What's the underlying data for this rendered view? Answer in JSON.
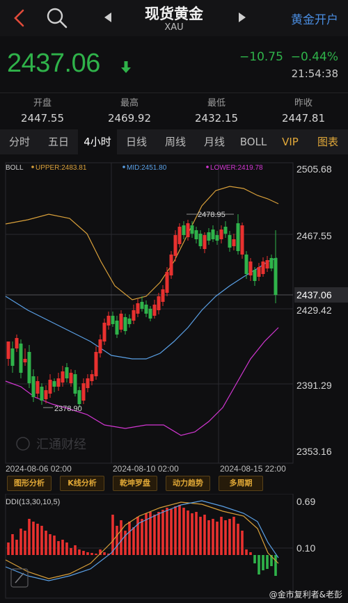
{
  "header": {
    "title": "现货黄金",
    "symbol": "XAU",
    "open_account": "黄金开户"
  },
  "quote": {
    "price": "2437.06",
    "change": "−10.75",
    "change_pct": "−0.44%",
    "time": "21:54:38"
  },
  "stats": [
    {
      "label": "开盘",
      "value": "2447.55"
    },
    {
      "label": "最高",
      "value": "2469.92"
    },
    {
      "label": "最低",
      "value": "2432.15"
    },
    {
      "label": "昨收",
      "value": "2447.81"
    }
  ],
  "tabs": [
    "分时",
    "五日",
    "4小时",
    "日线",
    "周线",
    "月线",
    "BOLL",
    "VIP",
    "图表"
  ],
  "active_tab": "4小时",
  "main_chart": {
    "indicator": "BOLL",
    "upper_label": "UPPER:2483.81",
    "mid_label": "MID:2451.80",
    "lower_label": "LOWER:2419.78",
    "price_ticks": [
      "2505.68",
      "2467.55",
      "2429.42",
      "2391.29",
      "2353.16"
    ],
    "current_price_tag": "2437.06",
    "high_annotation": "2478.95",
    "low_annotation": "2378.90",
    "date_labels": [
      "2024-08-06 02:00",
      "2024-08-10 02:00",
      "2024-08-15 22:00"
    ],
    "watermark": "汇通财经",
    "colors": {
      "up": "#e8312f",
      "down": "#2fb34a",
      "upper": "#d9a03a",
      "mid": "#5aa0e6",
      "lower": "#d236d2"
    }
  },
  "tool_buttons": [
    "图形分析",
    "K线分析",
    "乾坤罗盘",
    "动力趋势",
    "多周期"
  ],
  "ddi_chart": {
    "label": "DDI(13,30,10,5)",
    "ticks": [
      "0.69",
      "0.10"
    ]
  },
  "weibo": "@金市复利者&老彭"
}
